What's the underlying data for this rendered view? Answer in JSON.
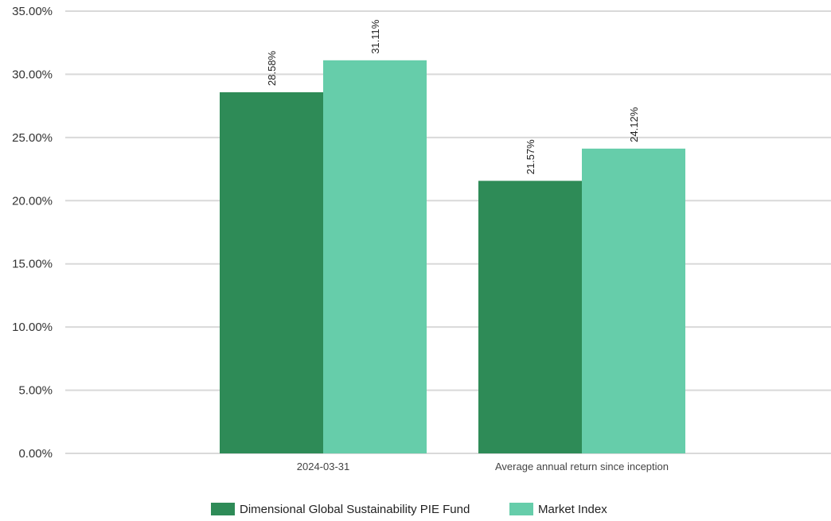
{
  "chart_data": {
    "type": "bar",
    "categories": [
      "2024-03-31",
      "Average annual return since inception"
    ],
    "series": [
      {
        "name": "Dimensional Global Sustainability PIE Fund",
        "values": [
          28.58,
          21.57
        ],
        "color": "#2e8b57"
      },
      {
        "name": "Market Index",
        "values": [
          31.11,
          24.12
        ],
        "color": "#66cdaa"
      }
    ],
    "data_labels": [
      [
        "28.58%",
        "21.57%"
      ],
      [
        "31.11%",
        "24.12%"
      ]
    ],
    "yticks": [
      0,
      5,
      10,
      15,
      20,
      25,
      30,
      35
    ],
    "ytick_labels": [
      "0.00%",
      "5.00%",
      "10.00%",
      "15.00%",
      "20.00%",
      "25.00%",
      "30.00%",
      "35.00%"
    ],
    "ylim": [
      0,
      35
    ],
    "grid": true,
    "legend_position": "bottom-center"
  }
}
